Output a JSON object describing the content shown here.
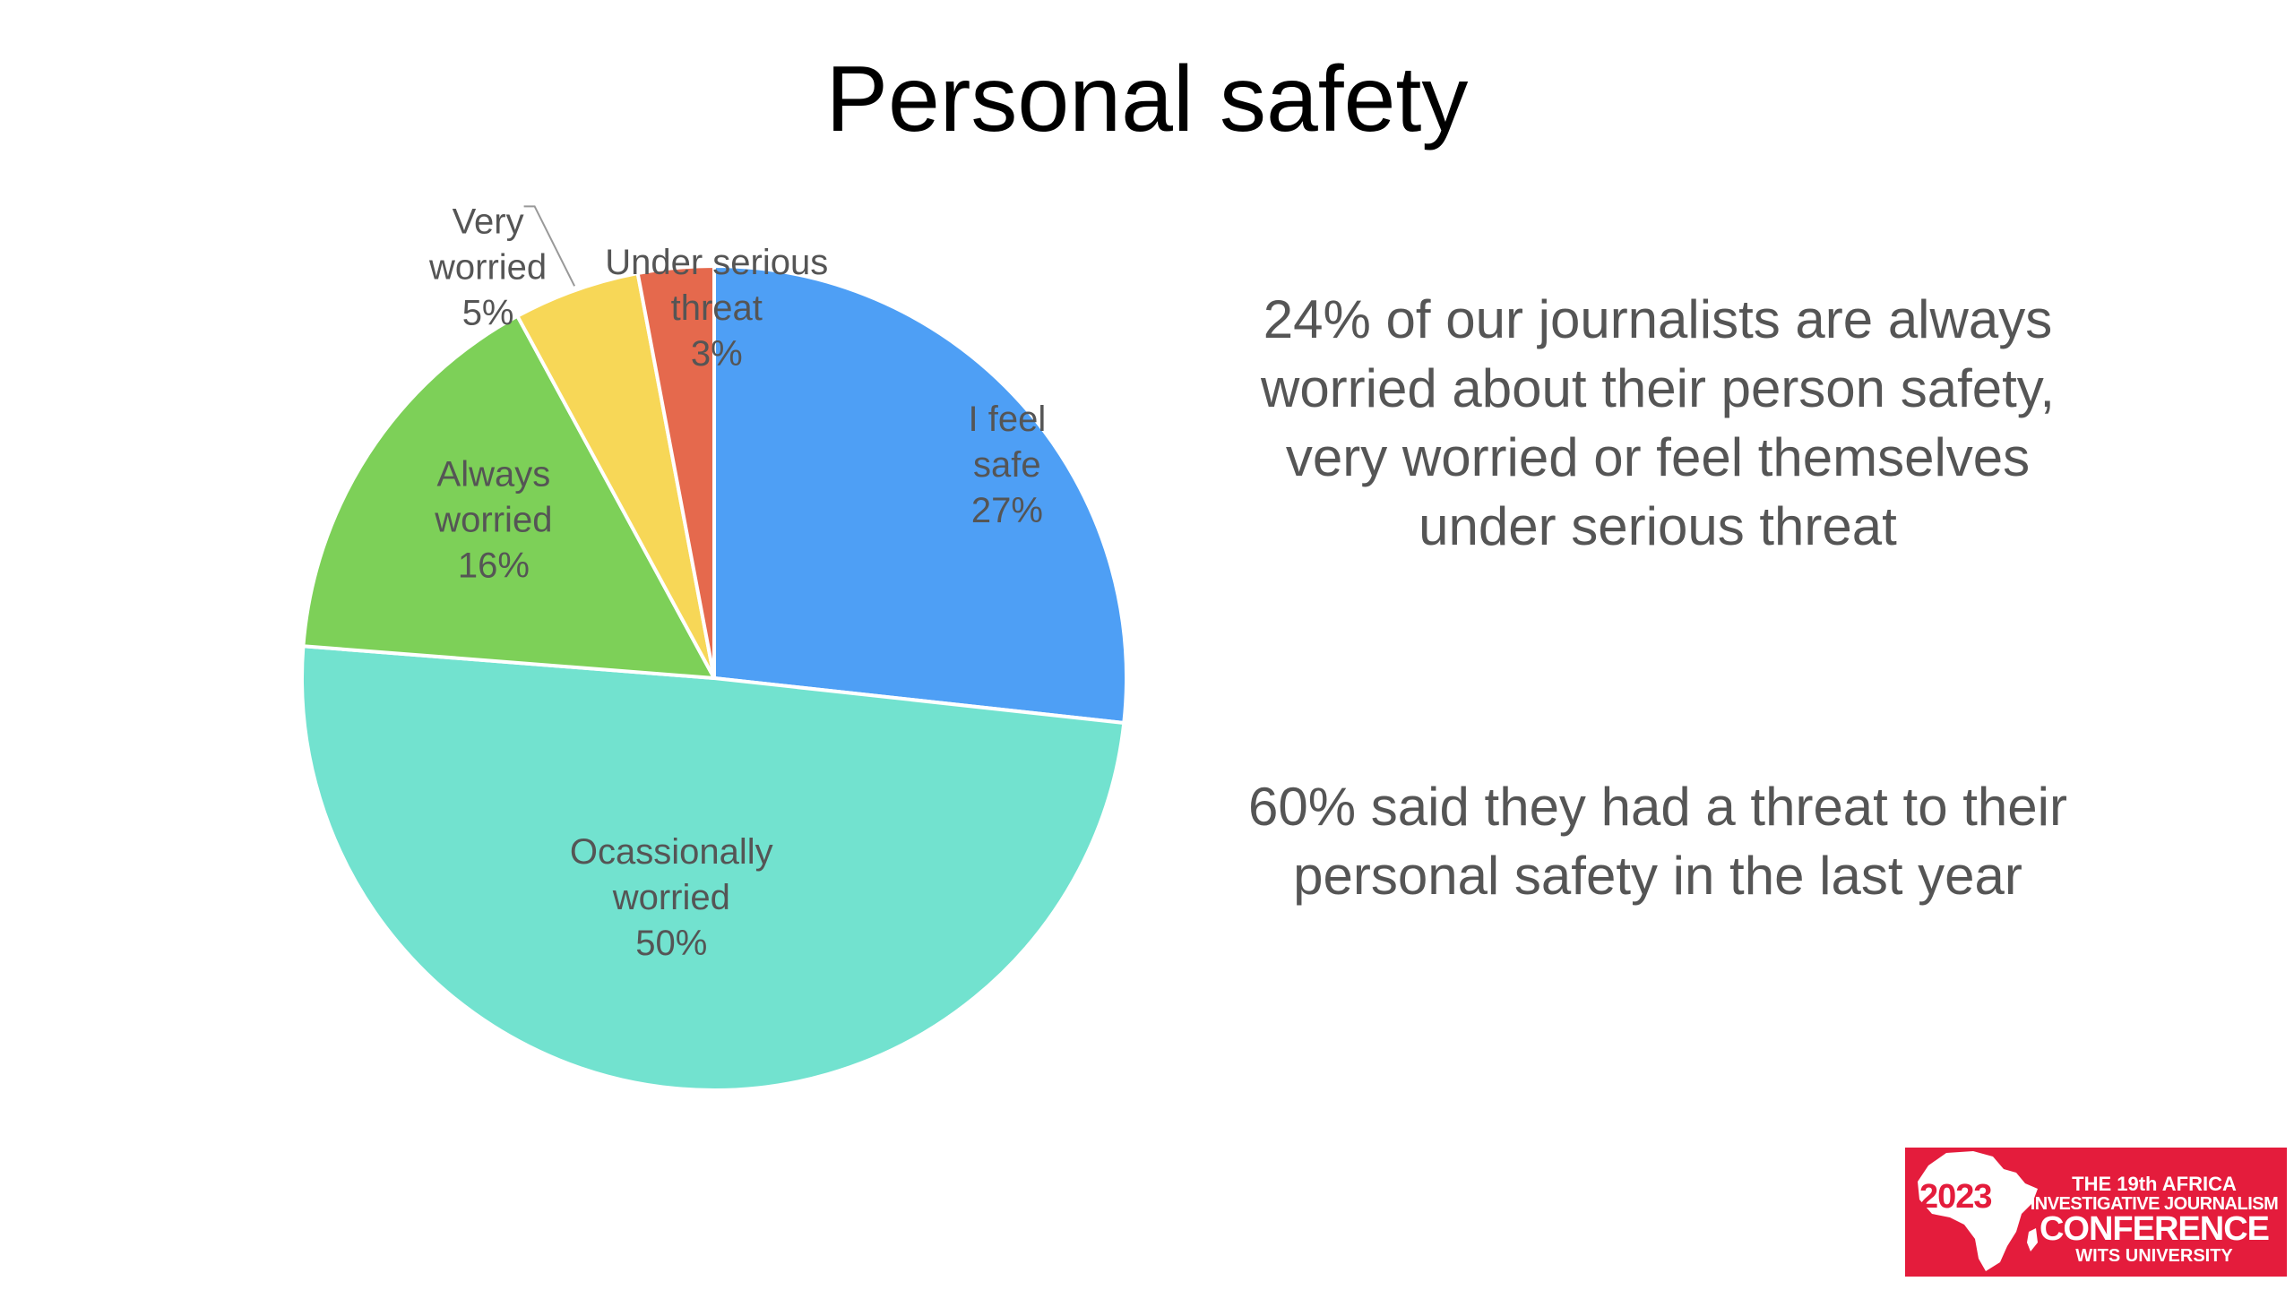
{
  "slide": {
    "title": "Personal safety",
    "stat_1": "24% of our journalists are always worried about their person safety, very worried or feel themselves under serious threat",
    "stat_2": "60% said they had a threat to their personal safety in the last year"
  },
  "logo": {
    "year": "2023",
    "line_1": "THE 19th AFRICA",
    "line_2": "INVESTIGATIVE JOURNALISM",
    "line_3": "CONFERENCE",
    "line_4": "WITS UNIVERSITY",
    "color": "#e41c3c"
  },
  "chart_data": {
    "type": "pie",
    "title": "",
    "slices": [
      {
        "label": [
          "I feel",
          "safe"
        ],
        "value": 27,
        "display": "27%",
        "color": "#4e9ff5"
      },
      {
        "label": [
          "Ocassionally",
          "worried"
        ],
        "value": 50,
        "display": "50%",
        "color": "#72e2cf"
      },
      {
        "label": [
          "Always",
          "worried"
        ],
        "value": 16,
        "display": "16%",
        "color": "#7dd058"
      },
      {
        "label": [
          "Very",
          "worried"
        ],
        "value": 5,
        "display": "5%",
        "color": "#f7d757"
      },
      {
        "label": [
          "Under serious",
          "threat"
        ],
        "value": 3,
        "display": "3%",
        "color": "#e5694d"
      }
    ],
    "start": "12 o'clock",
    "direction": "clockwise",
    "label_color": "#555555",
    "legend": "none"
  }
}
